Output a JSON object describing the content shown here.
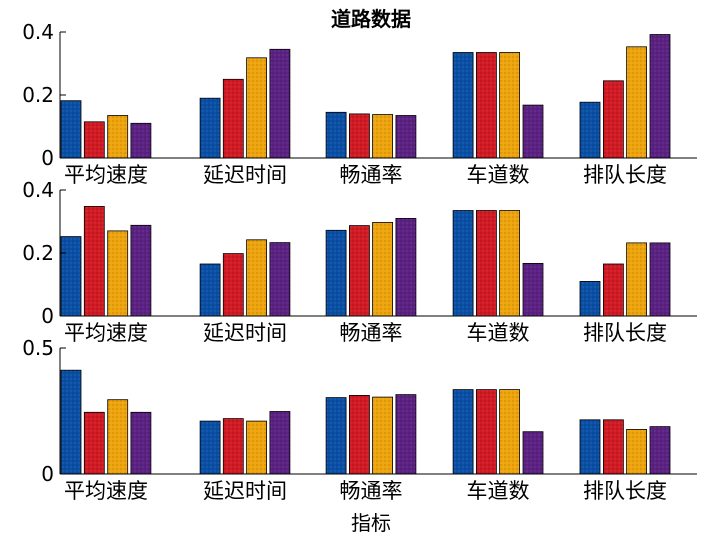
{
  "chart_data": [
    {
      "type": "bar",
      "title": "道路数据",
      "xlabel": "",
      "ylabel": "",
      "categories": [
        "平均速度",
        "延迟时间",
        "畅通率",
        "车道数",
        "排队长度"
      ],
      "ylim": [
        0,
        0.4
      ],
      "yticks": [
        "0",
        "0.2",
        "0.4"
      ],
      "series": [
        {
          "values": [
            0.182,
            0.19,
            0.145,
            0.335,
            0.177
          ]
        },
        {
          "values": [
            0.115,
            0.25,
            0.14,
            0.335,
            0.245
          ]
        },
        {
          "values": [
            0.135,
            0.318,
            0.138,
            0.335,
            0.353
          ]
        },
        {
          "values": [
            0.11,
            0.345,
            0.135,
            0.168,
            0.392
          ]
        }
      ]
    },
    {
      "type": "bar",
      "title": "",
      "xlabel": "",
      "ylabel": "",
      "categories": [
        "平均速度",
        "延迟时间",
        "畅通率",
        "车道数",
        "排队长度"
      ],
      "ylim": [
        0,
        0.4
      ],
      "yticks": [
        "0",
        "0.2",
        "0.4"
      ],
      "series": [
        {
          "values": [
            0.252,
            0.165,
            0.272,
            0.335,
            0.11
          ]
        },
        {
          "values": [
            0.348,
            0.198,
            0.287,
            0.335,
            0.165
          ]
        },
        {
          "values": [
            0.27,
            0.242,
            0.297,
            0.335,
            0.232
          ]
        },
        {
          "values": [
            0.288,
            0.233,
            0.31,
            0.167,
            0.232
          ]
        }
      ]
    },
    {
      "type": "bar",
      "title": "",
      "xlabel": "指标",
      "ylabel": "",
      "categories": [
        "平均速度",
        "延迟时间",
        "畅通率",
        "车道数",
        "排队长度"
      ],
      "ylim": [
        0,
        0.5
      ],
      "yticks": [
        "0",
        "0.5"
      ],
      "series": [
        {
          "values": [
            0.412,
            0.21,
            0.303,
            0.335,
            0.215
          ]
        },
        {
          "values": [
            0.245,
            0.22,
            0.312,
            0.335,
            0.215
          ]
        },
        {
          "values": [
            0.295,
            0.21,
            0.305,
            0.335,
            0.177
          ]
        },
        {
          "values": [
            0.245,
            0.248,
            0.315,
            0.168,
            0.188
          ]
        }
      ]
    }
  ],
  "colors": [
    "#0a4fa6",
    "#d11a23",
    "#eea40c",
    "#5b2183"
  ]
}
